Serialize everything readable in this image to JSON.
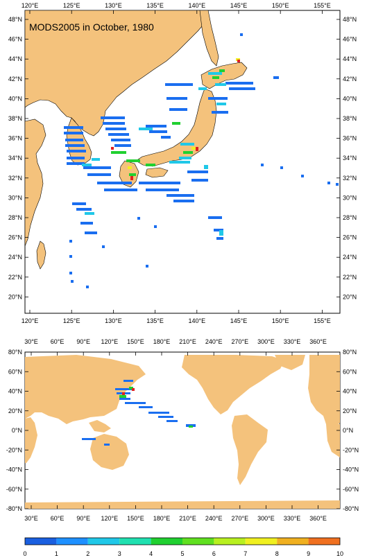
{
  "top_map": {
    "title": "MODS2005 in October, 1980",
    "lon_labels": [
      "120°E",
      "125°E",
      "130°E",
      "135°E",
      "140°E",
      "145°E",
      "150°E",
      "155°E"
    ],
    "lat_labels": [
      "48°N",
      "46°N",
      "44°N",
      "42°N",
      "40°N",
      "38°N",
      "36°N",
      "34°N",
      "32°N",
      "30°N",
      "28°N",
      "26°N",
      "24°N",
      "22°N",
      "20°N"
    ]
  },
  "bottom_map": {
    "lon_labels": [
      "30°E",
      "60°E",
      "90°E",
      "120°E",
      "150°E",
      "180°E",
      "210°E",
      "240°E",
      "270°E",
      "300°E",
      "330°E",
      "360°E"
    ],
    "lat_labels": [
      "80°N",
      "60°N",
      "40°N",
      "20°N",
      "0°N",
      "-20°N",
      "-40°N",
      "-60°N",
      "-80°N"
    ]
  },
  "colorbar": {
    "labels": [
      "0",
      "1",
      "2",
      "3",
      "4",
      "5",
      "6",
      "7",
      "8",
      "9",
      "10"
    ],
    "colors": [
      "#1a5fe0",
      "#1e90ff",
      "#20c8e8",
      "#20e0b0",
      "#20d030",
      "#60e020",
      "#b8f020",
      "#f0f020",
      "#f0b020",
      "#f07020",
      "#e02020"
    ]
  },
  "colors": {
    "land": "#f4c27c",
    "ocean": "#ffffff",
    "grid_blue": "#1a6ef0"
  }
}
